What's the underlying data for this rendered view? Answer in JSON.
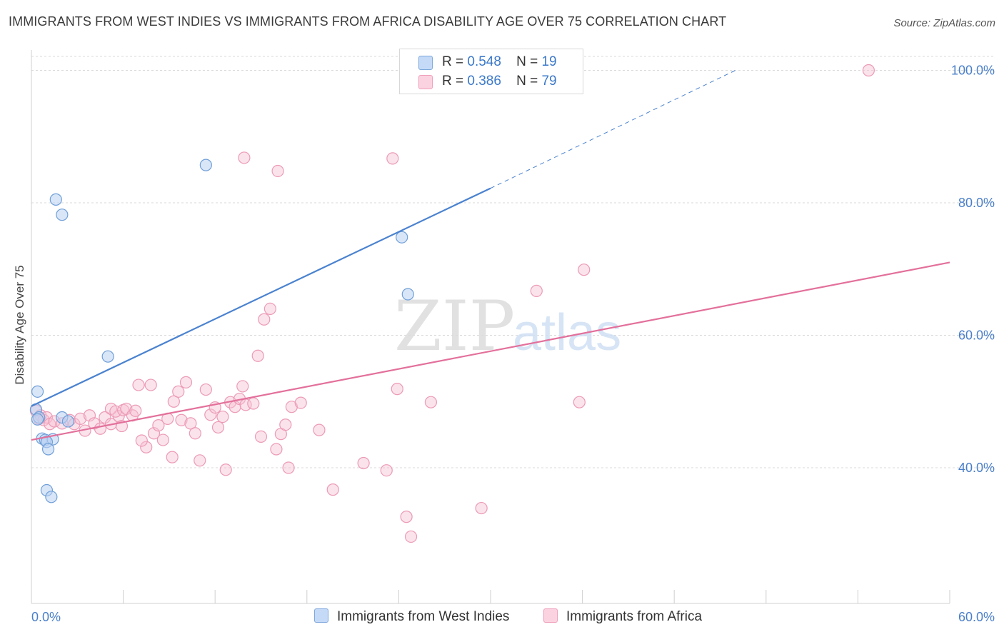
{
  "title": "IMMIGRANTS FROM WEST INDIES VS IMMIGRANTS FROM AFRICA DISABILITY AGE OVER 75 CORRELATION CHART",
  "source": "Source: ZipAtlas.com",
  "watermark": {
    "zip": "ZIP",
    "atlas": "atlas"
  },
  "legend": {
    "rows": [
      {
        "r_label": "R =",
        "r_value": "0.548",
        "n_label": "N =",
        "n_value": "19",
        "color": "#aecbf0",
        "stroke": "#6f9fd8"
      },
      {
        "r_label": "R =",
        "r_value": "0.386",
        "n_label": "N =",
        "n_value": "79",
        "color": "#f9c6d6",
        "stroke": "#ec93b1"
      }
    ]
  },
  "bottom_legend": [
    {
      "label": "Immigrants from West Indies",
      "color": "#c4daf6",
      "stroke": "#7ea8dc"
    },
    {
      "label": "Immigrants from Africa",
      "color": "#fbd3e0",
      "stroke": "#ef9fbb"
    }
  ],
  "chart_data": {
    "type": "scatter",
    "title": "IMMIGRANTS FROM WEST INDIES VS IMMIGRANTS FROM AFRICA DISABILITY AGE OVER 75 CORRELATION CHART",
    "xlabel": "",
    "ylabel": "Disability Age Over 75",
    "xlim": [
      0,
      60
    ],
    "ylim": [
      22,
      102
    ],
    "x_tick_labels": [
      "0.0%",
      "60.0%"
    ],
    "y_ticks": [
      40,
      60,
      80,
      100
    ],
    "y_tick_labels": [
      "40.0%",
      "60.0%",
      "80.0%",
      "100.0%"
    ],
    "grid": true,
    "series": [
      {
        "name": "Immigrants from West Indies",
        "color": "#4a82cf",
        "fill": "#b9d2f2",
        "R": 0.548,
        "N": 19,
        "trend": {
          "x0": 0,
          "y0": 49.3,
          "x1": 30,
          "y1": 82.2,
          "dash_to_x": 46,
          "dash_to_y": 100
        },
        "points": [
          [
            0.4,
            51.5
          ],
          [
            0.3,
            48.8
          ],
          [
            0.5,
            47.6
          ],
          [
            0.4,
            47.3
          ],
          [
            2.0,
            47.6
          ],
          [
            2.4,
            47.0
          ],
          [
            0.7,
            44.4
          ],
          [
            0.9,
            44.2
          ],
          [
            1.4,
            44.3
          ],
          [
            1.0,
            43.9
          ],
          [
            1.1,
            42.8
          ],
          [
            1.0,
            36.6
          ],
          [
            1.3,
            35.6
          ],
          [
            1.6,
            80.5
          ],
          [
            2.0,
            78.2
          ],
          [
            5.0,
            56.8
          ],
          [
            11.4,
            85.7
          ],
          [
            24.2,
            74.8
          ],
          [
            24.6,
            66.2
          ]
        ]
      },
      {
        "name": "Immigrants from Africa",
        "color": "#e3709b",
        "fill": "#f7c0d2",
        "R": 0.386,
        "N": 79,
        "trend": {
          "x0": 0,
          "y0": 44.2,
          "x1": 60,
          "y1": 71.0
        },
        "points": [
          [
            0.3,
            48.6
          ],
          [
            0.5,
            47.4
          ],
          [
            0.6,
            47.9
          ],
          [
            0.8,
            47.2
          ],
          [
            1.0,
            47.6
          ],
          [
            1.2,
            46.6
          ],
          [
            1.5,
            47.0
          ],
          [
            2.0,
            46.7
          ],
          [
            2.5,
            47.2
          ],
          [
            2.8,
            46.6
          ],
          [
            3.2,
            47.4
          ],
          [
            3.5,
            45.6
          ],
          [
            3.8,
            47.9
          ],
          [
            4.1,
            46.7
          ],
          [
            4.5,
            45.9
          ],
          [
            4.8,
            47.6
          ],
          [
            5.2,
            46.6
          ],
          [
            5.7,
            47.8
          ],
          [
            5.2,
            48.9
          ],
          [
            5.5,
            48.5
          ],
          [
            6.0,
            48.7
          ],
          [
            6.2,
            48.9
          ],
          [
            6.6,
            47.9
          ],
          [
            5.9,
            46.3
          ],
          [
            6.8,
            48.6
          ],
          [
            7.0,
            52.5
          ],
          [
            7.5,
            43.1
          ],
          [
            7.2,
            44.1
          ],
          [
            8.0,
            45.2
          ],
          [
            8.3,
            46.4
          ],
          [
            7.8,
            52.5
          ],
          [
            8.6,
            44.2
          ],
          [
            8.9,
            47.4
          ],
          [
            9.2,
            41.6
          ],
          [
            9.3,
            50.0
          ],
          [
            9.6,
            51.5
          ],
          [
            9.8,
            47.2
          ],
          [
            10.1,
            52.9
          ],
          [
            10.4,
            46.7
          ],
          [
            10.7,
            45.2
          ],
          [
            11.0,
            41.1
          ],
          [
            11.4,
            51.8
          ],
          [
            11.7,
            48.0
          ],
          [
            12.0,
            49.1
          ],
          [
            12.2,
            46.1
          ],
          [
            12.5,
            47.7
          ],
          [
            12.7,
            39.7
          ],
          [
            13.0,
            49.9
          ],
          [
            13.3,
            49.2
          ],
          [
            13.6,
            50.4
          ],
          [
            13.8,
            52.3
          ],
          [
            14.0,
            49.5
          ],
          [
            14.5,
            49.7
          ],
          [
            14.8,
            56.9
          ],
          [
            15.0,
            44.7
          ],
          [
            15.2,
            62.4
          ],
          [
            15.6,
            64.0
          ],
          [
            16.0,
            42.8
          ],
          [
            16.3,
            45.1
          ],
          [
            16.6,
            46.5
          ],
          [
            16.8,
            40.0
          ],
          [
            17.0,
            49.2
          ],
          [
            17.6,
            49.8
          ],
          [
            18.8,
            45.7
          ],
          [
            19.7,
            36.7
          ],
          [
            21.7,
            40.7
          ],
          [
            23.2,
            39.6
          ],
          [
            23.9,
            51.9
          ],
          [
            24.5,
            32.6
          ],
          [
            24.8,
            29.6
          ],
          [
            26.1,
            49.9
          ],
          [
            29.4,
            33.9
          ],
          [
            13.9,
            86.8
          ],
          [
            16.1,
            84.8
          ],
          [
            23.6,
            86.7
          ],
          [
            33.0,
            66.7
          ],
          [
            36.1,
            69.9
          ],
          [
            35.8,
            49.9
          ],
          [
            54.7,
            100.0
          ]
        ]
      }
    ]
  }
}
